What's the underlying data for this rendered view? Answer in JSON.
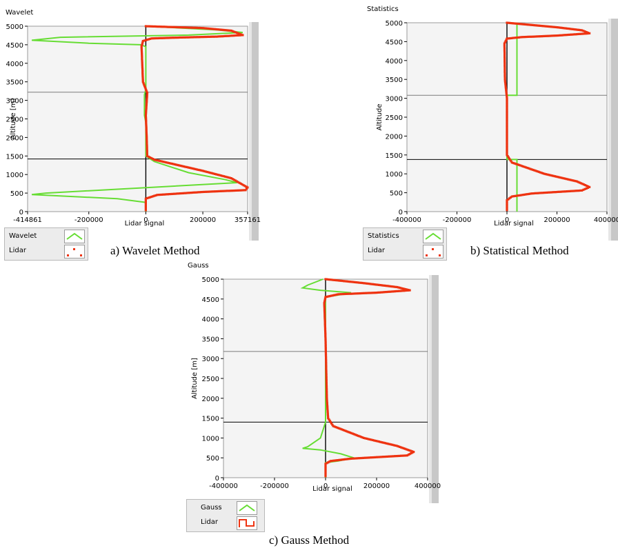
{
  "charts": [
    {
      "id": "a",
      "caption": "a) Wavelet Method",
      "chart_data": {
        "type": "line",
        "title": "Wavelet",
        "xlabel": "Lidar signal",
        "ylabel": "Altitude [m]",
        "xlim": [
          -414861,
          357161
        ],
        "ylim": [
          0,
          5000
        ],
        "x_ticks": [
          "-414861",
          "-200000",
          "0",
          "200000",
          "357161"
        ],
        "x_tick_values": [
          -414861,
          -200000,
          0,
          200000,
          357161
        ],
        "y_ticks": [
          "0",
          "500",
          "1000",
          "1500",
          "2000",
          "2500",
          "3000",
          "3500",
          "4000",
          "4500",
          "5000"
        ],
        "hlines": [
          1420,
          3220
        ],
        "series": [
          {
            "name": "Wavelet",
            "color": "#66dd33",
            "style": "line",
            "points": [
              [
                0,
                5000
              ],
              [
                250000,
                4900
              ],
              [
                340000,
                4830
              ],
              [
                150000,
                4760
              ],
              [
                -300000,
                4700
              ],
              [
                -400000,
                4620
              ],
              [
                -200000,
                4540
              ],
              [
                -20000,
                4500
              ],
              [
                0,
                4450
              ],
              [
                0,
                3300
              ],
              [
                -5000,
                3150
              ],
              [
                -5000,
                2600
              ],
              [
                0,
                2400
              ],
              [
                0,
                1500
              ],
              [
                30000,
                1350
              ],
              [
                150000,
                1050
              ],
              [
                280000,
                860
              ],
              [
                320000,
                780
              ],
              [
                -350000,
                500
              ],
              [
                -400000,
                460
              ],
              [
                -100000,
                350
              ],
              [
                0,
                250
              ],
              [
                0,
                0
              ]
            ]
          },
          {
            "name": "Lidar",
            "color": "#ee3311",
            "style": "dots",
            "points": [
              [
                0,
                5000
              ],
              [
                200000,
                4950
              ],
              [
                300000,
                4880
              ],
              [
                340000,
                4760
              ],
              [
                250000,
                4720
              ],
              [
                100000,
                4690
              ],
              [
                20000,
                4670
              ],
              [
                -10000,
                4600
              ],
              [
                -15000,
                4450
              ],
              [
                -10000,
                3500
              ],
              [
                5000,
                3200
              ],
              [
                0,
                2600
              ],
              [
                3000,
                2000
              ],
              [
                5000,
                1500
              ],
              [
                30000,
                1400
              ],
              [
                200000,
                1100
              ],
              [
                300000,
                900
              ],
              [
                357161,
                650
              ],
              [
                350000,
                580
              ],
              [
                200000,
                530
              ],
              [
                40000,
                450
              ],
              [
                0,
                350
              ],
              [
                0,
                0
              ]
            ]
          }
        ]
      }
    },
    {
      "id": "b",
      "caption": "b) Statistical Method",
      "chart_data": {
        "type": "line",
        "title": "Statistics",
        "xlabel": "Lidar signal",
        "ylabel": "Altitude",
        "xlim": [
          -400000,
          400000
        ],
        "ylim": [
          0,
          5000
        ],
        "x_ticks": [
          "-400000",
          "-200000",
          "0",
          "200000",
          "400000"
        ],
        "x_tick_values": [
          -400000,
          -200000,
          0,
          200000,
          400000
        ],
        "y_ticks": [
          "0",
          "500",
          "1000",
          "1500",
          "2000",
          "2500",
          "3000",
          "3500",
          "4000",
          "4500",
          "5000"
        ],
        "hlines": [
          1380,
          3080
        ],
        "series": [
          {
            "name": "Statistics",
            "color": "#66dd33",
            "style": "line",
            "points": [
              [
                40000,
                5000
              ],
              [
                40000,
                3080
              ],
              [
                0,
                3080
              ],
              [
                0,
                1380
              ],
              [
                40000,
                1380
              ],
              [
                40000,
                0
              ]
            ]
          },
          {
            "name": "Lidar",
            "color": "#ee3311",
            "style": "dots",
            "points": [
              [
                0,
                5000
              ],
              [
                200000,
                4880
              ],
              [
                300000,
                4800
              ],
              [
                330000,
                4720
              ],
              [
                200000,
                4660
              ],
              [
                60000,
                4620
              ],
              [
                0,
                4580
              ],
              [
                -10000,
                4450
              ],
              [
                -8000,
                3500
              ],
              [
                0,
                3000
              ],
              [
                0,
                1500
              ],
              [
                20000,
                1300
              ],
              [
                150000,
                1000
              ],
              [
                280000,
                800
              ],
              [
                330000,
                650
              ],
              [
                300000,
                560
              ],
              [
                100000,
                480
              ],
              [
                20000,
                400
              ],
              [
                0,
                300
              ],
              [
                0,
                0
              ]
            ]
          }
        ]
      }
    },
    {
      "id": "c",
      "caption": "c) Gauss Method",
      "chart_data": {
        "type": "line",
        "title": "Gauss",
        "xlabel": "Lidar signal",
        "ylabel": "Altitude [m]",
        "xlim": [
          -400000,
          400000
        ],
        "ylim": [
          0,
          5000
        ],
        "x_ticks": [
          "-400000",
          "-200000",
          "0",
          "200000",
          "400000"
        ],
        "x_tick_values": [
          -400000,
          -200000,
          0,
          200000,
          400000
        ],
        "y_ticks": [
          "0",
          "500",
          "1000",
          "1500",
          "2000",
          "2500",
          "3000",
          "3500",
          "4000",
          "4500",
          "5000"
        ],
        "hlines": [
          1400,
          3180
        ],
        "series": [
          {
            "name": "Gauss",
            "color": "#66dd33",
            "style": "line",
            "points": [
              [
                -10000,
                5000
              ],
              [
                -70000,
                4850
              ],
              [
                -90000,
                4780
              ],
              [
                -20000,
                4720
              ],
              [
                100000,
                4660
              ],
              [
                50000,
                4600
              ],
              [
                0,
                4550
              ],
              [
                0,
                1400
              ],
              [
                -20000,
                1000
              ],
              [
                -70000,
                780
              ],
              [
                -90000,
                740
              ],
              [
                -20000,
                700
              ],
              [
                60000,
                600
              ],
              [
                110000,
                500
              ],
              [
                50000,
                420
              ],
              [
                0,
                380
              ],
              [
                0,
                0
              ]
            ]
          },
          {
            "name": "Lidar",
            "color": "#ee3311",
            "style": "dots",
            "points": [
              [
                0,
                5000
              ],
              [
                150000,
                4900
              ],
              [
                280000,
                4800
              ],
              [
                330000,
                4720
              ],
              [
                200000,
                4660
              ],
              [
                50000,
                4620
              ],
              [
                0,
                4550
              ],
              [
                -5000,
                4400
              ],
              [
                0,
                3500
              ],
              [
                5000,
                2000
              ],
              [
                10000,
                1500
              ],
              [
                30000,
                1300
              ],
              [
                150000,
                1000
              ],
              [
                280000,
                800
              ],
              [
                345000,
                650
              ],
              [
                320000,
                560
              ],
              [
                100000,
                480
              ],
              [
                20000,
                420
              ],
              [
                0,
                350
              ],
              [
                0,
                0
              ]
            ]
          }
        ]
      }
    }
  ]
}
